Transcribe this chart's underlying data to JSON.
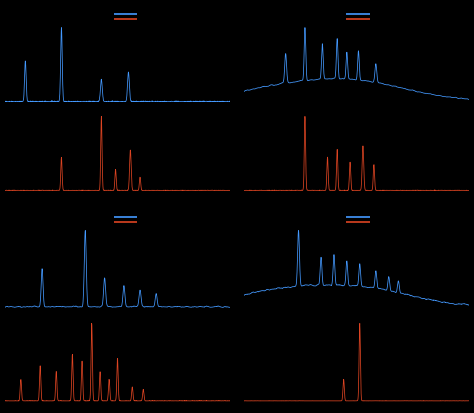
{
  "background_color": "#000000",
  "blue_color": "#4499ff",
  "red_color": "#dd4422",
  "figsize": [
    4.74,
    4.13
  ],
  "dpi": 100
}
